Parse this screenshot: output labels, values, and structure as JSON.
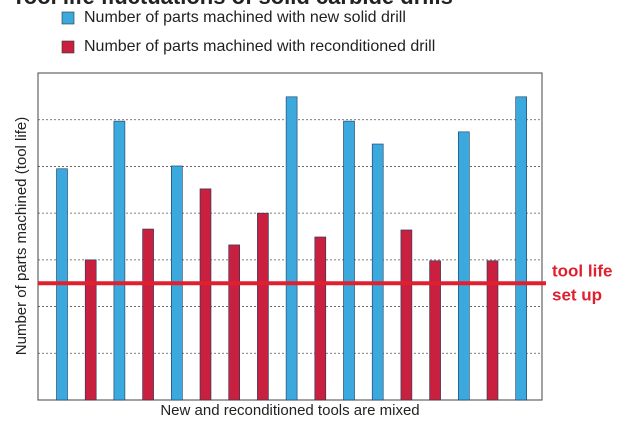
{
  "chart_data": {
    "type": "bar",
    "title": "Tool life fluctuations of solid carbide drills",
    "x_label": "New and reconditioned tools are mixed",
    "y_label": "Number of parts machined (tool life)",
    "categories": [
      null,
      null,
      null,
      null,
      null,
      null,
      null,
      null,
      null,
      null,
      null,
      null,
      null,
      null,
      null,
      null,
      null
    ],
    "series": [
      {
        "name": "Number of parts machined with new solid drill",
        "color": "#3ba9dd",
        "values": [
          4.95,
          null,
          5.97,
          null,
          5.01,
          null,
          null,
          null,
          6.49,
          null,
          5.97,
          5.48,
          null,
          null,
          5.74,
          null,
          6.49
        ]
      },
      {
        "name": "Number of parts machined with reconditioned drill",
        "color": "#c8203e",
        "values": [
          null,
          3.0,
          null,
          3.66,
          null,
          4.52,
          3.32,
          4.0,
          null,
          3.49,
          null,
          null,
          3.64,
          2.98,
          null,
          2.98,
          null
        ]
      }
    ],
    "ylim": [
      0,
      7
    ],
    "yticks": [
      1,
      2,
      3,
      4,
      5,
      6
    ],
    "grid": true,
    "threshold": {
      "value": 2.5,
      "label": [
        "tool life",
        "set up"
      ],
      "color": "#e0202e"
    }
  }
}
